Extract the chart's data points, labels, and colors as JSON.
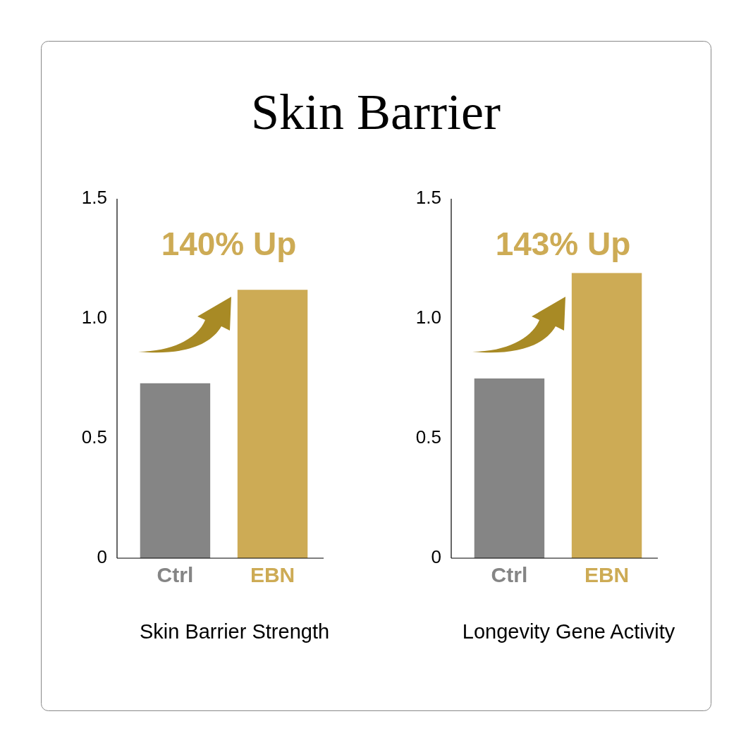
{
  "chart_data": [
    {
      "type": "bar",
      "title": "Skin Barrier",
      "categories": [
        "Ctrl",
        "EBN"
      ],
      "values": [
        0.73,
        1.12
      ],
      "colors": [
        "#858585",
        "#cdab55"
      ],
      "ylim": [
        0,
        1.5
      ],
      "yticks": [
        0,
        0.5,
        {
          "value": 1,
          "label": "1.0"
        },
        1.5
      ],
      "xlabel": "Skin Barrier Strength",
      "annotations": [
        "140% Up"
      ],
      "grid": false
    },
    {
      "type": "bar",
      "categories": [
        "Ctrl",
        "EBN"
      ],
      "values": [
        0.75,
        1.19
      ],
      "colors": [
        "#858585",
        "#cdab55"
      ],
      "ylim": [
        0,
        1.5
      ],
      "yticks": [
        0,
        0.5,
        {
          "value": 1,
          "label": "1.0"
        },
        1.5
      ],
      "xlabel": "Longevity Gene Activity",
      "annotations": [
        "143% Up"
      ],
      "grid": false
    }
  ]
}
